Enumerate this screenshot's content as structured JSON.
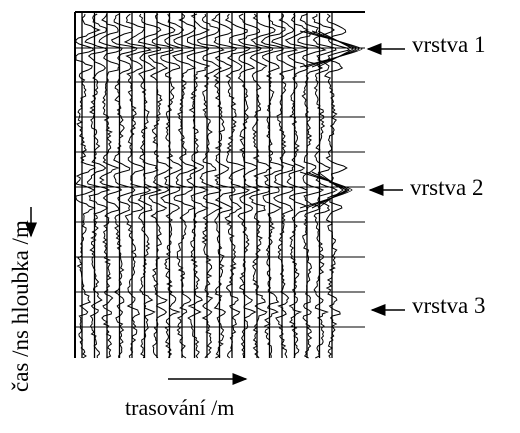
{
  "layers": [
    {
      "label": "vrstva 1"
    },
    {
      "label": "vrstva 2"
    },
    {
      "label": "vrstva 3"
    }
  ],
  "axes": {
    "x_label": "trasování /m",
    "y_label": "čas /ns   hloubka /m"
  },
  "icons": {
    "layer_pointer": "left-arrow-icon",
    "x_direction": "right-arrow-icon",
    "y_direction": "down-arrow-icon"
  },
  "colors": {
    "ink": "#000000",
    "background": "#ffffff"
  }
}
